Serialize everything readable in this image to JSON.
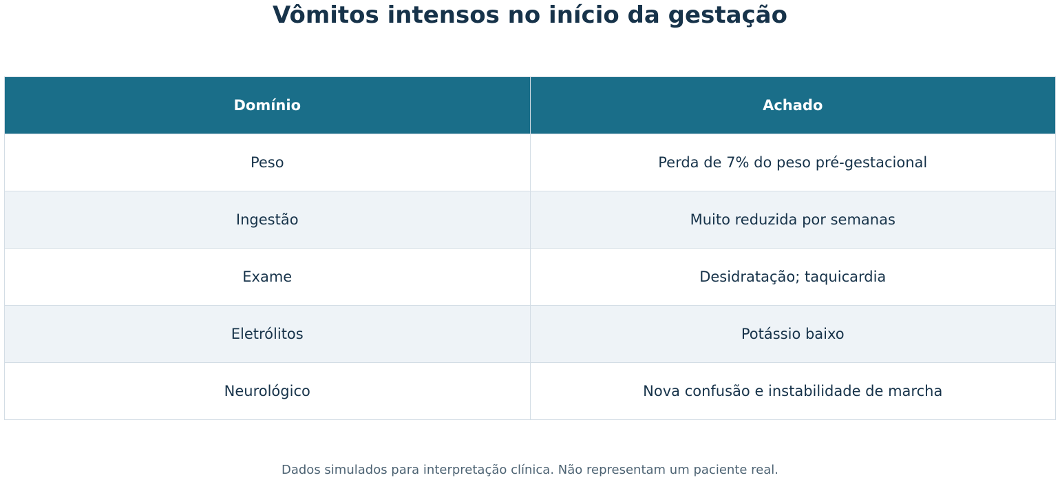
{
  "title": "Vômitos intensos no início da gestação",
  "table": {
    "header": [
      "Domínio",
      "Achado"
    ],
    "rows": [
      [
        "Peso",
        "Perda de 7% do peso pré-gestacional"
      ],
      [
        "Ingestão",
        "Muito reduzida por semanas"
      ],
      [
        "Exame",
        "Desidratação; taquicardia"
      ],
      [
        "Eletrólitos",
        "Potássio baixo"
      ],
      [
        "Neurológico",
        "Nova confusão e instabilidade de marcha"
      ]
    ]
  },
  "footnote": "Dados simulados para interpretação clínica. Não representam um paciente real."
}
